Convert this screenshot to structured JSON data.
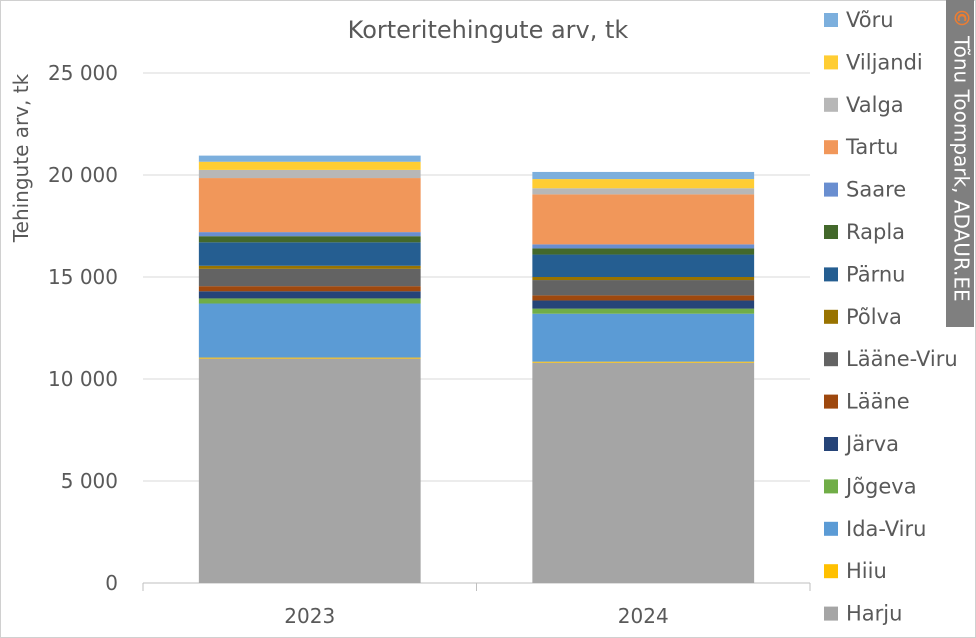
{
  "chart_data": {
    "type": "bar",
    "stacked": true,
    "title": "Korteritehingute arv, tk",
    "ylabel": "Tehingute arv, tk",
    "xlabel": "",
    "categories": [
      "2023",
      "2024"
    ],
    "ylim": [
      0,
      25000
    ],
    "yticks": [
      0,
      5000,
      10000,
      15000,
      20000,
      25000
    ],
    "ytick_labels": [
      "0",
      "5 000",
      "10 000",
      "15 000",
      "20 000",
      "25 000"
    ],
    "grid": true,
    "legend_position": "right",
    "series": [
      {
        "name": "Harju",
        "color": "#a5a5a5",
        "values": [
          11000,
          10800
        ]
      },
      {
        "name": "Hiiu",
        "color": "#ffc000",
        "values": [
          50,
          50
        ]
      },
      {
        "name": "Ida-Viru",
        "color": "#5b9bd5",
        "values": [
          2650,
          2350
        ]
      },
      {
        "name": "Jõgeva",
        "color": "#70ad47",
        "values": [
          250,
          250
        ]
      },
      {
        "name": "Järva",
        "color": "#264478",
        "values": [
          350,
          400
        ]
      },
      {
        "name": "Lääne",
        "color": "#9e480e",
        "values": [
          250,
          250
        ]
      },
      {
        "name": "Lääne-Viru",
        "color": "#636363",
        "values": [
          850,
          750
        ]
      },
      {
        "name": "Põlva",
        "color": "#997300",
        "values": [
          150,
          150
        ]
      },
      {
        "name": "Pärnu",
        "color": "#255e91",
        "values": [
          1150,
          1100
        ]
      },
      {
        "name": "Rapla",
        "color": "#43682b",
        "values": [
          300,
          300
        ]
      },
      {
        "name": "Saare",
        "color": "#698ed0",
        "values": [
          200,
          200
        ]
      },
      {
        "name": "Tartu",
        "color": "#f1975a",
        "values": [
          2650,
          2450
        ]
      },
      {
        "name": "Valga",
        "color": "#b7b7b7",
        "values": [
          400,
          300
        ]
      },
      {
        "name": "Viljandi",
        "color": "#ffcd33",
        "values": [
          400,
          450
        ]
      },
      {
        "name": "Võru",
        "color": "#7cafdd",
        "values": [
          300,
          350
        ]
      }
    ]
  },
  "watermark": {
    "symbol": "©",
    "text": "Tõnu Toompark, ADAUR.EE",
    "background": "#7f7f7f",
    "symbol_color": "#ed7d31"
  }
}
